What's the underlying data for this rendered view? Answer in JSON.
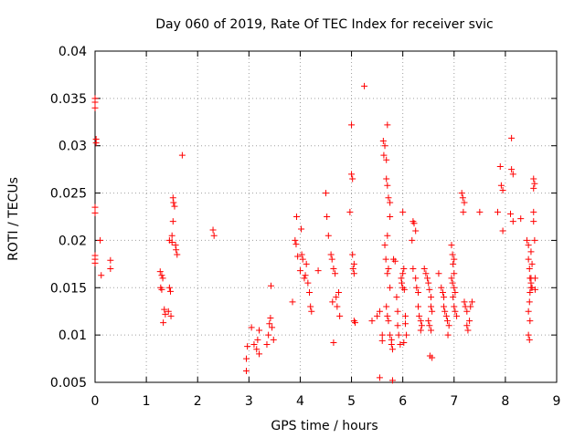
{
  "chart_data": {
    "type": "scatter",
    "title": "Day 060 of 2019, Rate Of TEC Index for receiver svic",
    "xlabel": "GPS time / hours",
    "ylabel": "ROTI / TECUs",
    "xlim": [
      0,
      9
    ],
    "ylim": [
      0.005,
      0.04
    ],
    "xticks": [
      "0",
      "1",
      "2",
      "3",
      "4",
      "5",
      "6",
      "7",
      "8",
      "9"
    ],
    "yticks": [
      "0.005",
      "0.01",
      "0.015",
      "0.02",
      "0.025",
      "0.03",
      "0.035",
      "0.04"
    ],
    "grid": true,
    "legend": "none",
    "marker": "plus",
    "color": "#ff0000",
    "series": [
      {
        "name": "ROTI",
        "points": [
          [
            0.0,
            0.035
          ],
          [
            0.0,
            0.0346
          ],
          [
            0.0,
            0.034
          ],
          [
            0.02,
            0.0307
          ],
          [
            0.02,
            0.0303
          ],
          [
            0.0,
            0.0235
          ],
          [
            0.0,
            0.0229
          ],
          [
            0.0,
            0.0184
          ],
          [
            0.0,
            0.018
          ],
          [
            0.0,
            0.0176
          ],
          [
            0.1,
            0.02
          ],
          [
            0.12,
            0.0163
          ],
          [
            0.3,
            0.0179
          ],
          [
            0.3,
            0.017
          ],
          [
            1.27,
            0.0167
          ],
          [
            1.3,
            0.0163
          ],
          [
            1.32,
            0.016
          ],
          [
            1.28,
            0.015
          ],
          [
            1.3,
            0.0148
          ],
          [
            1.35,
            0.0127
          ],
          [
            1.37,
            0.0122
          ],
          [
            1.33,
            0.0113
          ],
          [
            1.45,
            0.015
          ],
          [
            1.47,
            0.0146
          ],
          [
            1.43,
            0.0125
          ],
          [
            1.48,
            0.012
          ],
          [
            1.45,
            0.02
          ],
          [
            1.5,
            0.0198
          ],
          [
            1.52,
            0.0245
          ],
          [
            1.53,
            0.024
          ],
          [
            1.55,
            0.0236
          ],
          [
            1.52,
            0.022
          ],
          [
            1.5,
            0.0205
          ],
          [
            1.57,
            0.0195
          ],
          [
            1.58,
            0.019
          ],
          [
            1.6,
            0.0185
          ],
          [
            1.7,
            0.029
          ],
          [
            2.3,
            0.0211
          ],
          [
            2.32,
            0.0205
          ],
          [
            2.95,
            0.0062
          ],
          [
            2.95,
            0.0075
          ],
          [
            2.97,
            0.0088
          ],
          [
            3.05,
            0.0108
          ],
          [
            3.1,
            0.009
          ],
          [
            3.17,
            0.0095
          ],
          [
            3.2,
            0.0105
          ],
          [
            3.15,
            0.0085
          ],
          [
            3.2,
            0.008
          ],
          [
            3.35,
            0.009
          ],
          [
            3.38,
            0.01
          ],
          [
            3.4,
            0.0112
          ],
          [
            3.42,
            0.0118
          ],
          [
            3.45,
            0.0108
          ],
          [
            3.48,
            0.0095
          ],
          [
            3.43,
            0.0152
          ],
          [
            3.85,
            0.0135
          ],
          [
            3.9,
            0.02
          ],
          [
            3.92,
            0.0196
          ],
          [
            3.95,
            0.0183
          ],
          [
            3.93,
            0.0225
          ],
          [
            4.0,
            0.0168
          ],
          [
            4.02,
            0.0212
          ],
          [
            4.03,
            0.0185
          ],
          [
            4.05,
            0.018
          ],
          [
            4.08,
            0.016
          ],
          [
            4.1,
            0.0163
          ],
          [
            4.12,
            0.0175
          ],
          [
            4.15,
            0.0155
          ],
          [
            4.18,
            0.0145
          ],
          [
            4.2,
            0.013
          ],
          [
            4.22,
            0.0125
          ],
          [
            4.35,
            0.0168
          ],
          [
            4.5,
            0.025
          ],
          [
            4.52,
            0.0225
          ],
          [
            4.55,
            0.0205
          ],
          [
            4.6,
            0.0185
          ],
          [
            4.62,
            0.018
          ],
          [
            4.65,
            0.017
          ],
          [
            4.68,
            0.0165
          ],
          [
            4.63,
            0.0135
          ],
          [
            4.7,
            0.014
          ],
          [
            4.72,
            0.013
          ],
          [
            4.75,
            0.0145
          ],
          [
            4.77,
            0.012
          ],
          [
            4.65,
            0.0092
          ],
          [
            4.97,
            0.023
          ],
          [
            5.0,
            0.0322
          ],
          [
            5.0,
            0.027
          ],
          [
            5.02,
            0.0265
          ],
          [
            5.02,
            0.0185
          ],
          [
            5.05,
            0.0175
          ],
          [
            5.03,
            0.017
          ],
          [
            5.05,
            0.0165
          ],
          [
            5.05,
            0.0115
          ],
          [
            5.07,
            0.0113
          ],
          [
            5.25,
            0.0363
          ],
          [
            5.4,
            0.0115
          ],
          [
            5.5,
            0.012
          ],
          [
            5.55,
            0.0125
          ],
          [
            5.55,
            0.0055
          ],
          [
            5.6,
            0.01
          ],
          [
            5.6,
            0.0094
          ],
          [
            5.62,
            0.0305
          ],
          [
            5.65,
            0.03
          ],
          [
            5.63,
            0.029
          ],
          [
            5.68,
            0.0285
          ],
          [
            5.7,
            0.0322
          ],
          [
            5.68,
            0.0265
          ],
          [
            5.7,
            0.0258
          ],
          [
            5.72,
            0.0245
          ],
          [
            5.75,
            0.024
          ],
          [
            5.75,
            0.0225
          ],
          [
            5.7,
            0.0205
          ],
          [
            5.65,
            0.0195
          ],
          [
            5.67,
            0.018
          ],
          [
            5.72,
            0.017
          ],
          [
            5.7,
            0.0165
          ],
          [
            5.75,
            0.015
          ],
          [
            5.68,
            0.013
          ],
          [
            5.7,
            0.012
          ],
          [
            5.72,
            0.0115
          ],
          [
            5.75,
            0.01
          ],
          [
            5.78,
            0.0095
          ],
          [
            5.78,
            0.009
          ],
          [
            5.8,
            0.0085
          ],
          [
            5.8,
            0.0052
          ],
          [
            5.82,
            0.018
          ],
          [
            5.85,
            0.0178
          ],
          [
            5.88,
            0.014
          ],
          [
            5.9,
            0.0125
          ],
          [
            5.9,
            0.011
          ],
          [
            5.92,
            0.01
          ],
          [
            5.95,
            0.009
          ],
          [
            5.97,
            0.016
          ],
          [
            5.98,
            0.0155
          ],
          [
            6.0,
            0.0165
          ],
          [
            6.0,
            0.015
          ],
          [
            6.02,
            0.017
          ],
          [
            6.03,
            0.0148
          ],
          [
            6.05,
            0.012
          ],
          [
            6.05,
            0.0112
          ],
          [
            6.02,
            0.0092
          ],
          [
            6.07,
            0.01
          ],
          [
            6.0,
            0.023
          ],
          [
            6.2,
            0.022
          ],
          [
            6.22,
            0.0218
          ],
          [
            6.25,
            0.021
          ],
          [
            6.18,
            0.02
          ],
          [
            6.2,
            0.017
          ],
          [
            6.25,
            0.016
          ],
          [
            6.27,
            0.015
          ],
          [
            6.3,
            0.0145
          ],
          [
            6.3,
            0.013
          ],
          [
            6.32,
            0.012
          ],
          [
            6.35,
            0.0115
          ],
          [
            6.37,
            0.011
          ],
          [
            6.35,
            0.0105
          ],
          [
            6.42,
            0.017
          ],
          [
            6.45,
            0.0165
          ],
          [
            6.48,
            0.016
          ],
          [
            6.5,
            0.0155
          ],
          [
            6.52,
            0.0148
          ],
          [
            6.55,
            0.014
          ],
          [
            6.55,
            0.013
          ],
          [
            6.57,
            0.0125
          ],
          [
            6.5,
            0.0115
          ],
          [
            6.52,
            0.011
          ],
          [
            6.55,
            0.0105
          ],
          [
            6.53,
            0.0078
          ],
          [
            6.57,
            0.0076
          ],
          [
            6.7,
            0.0165
          ],
          [
            6.75,
            0.015
          ],
          [
            6.78,
            0.0145
          ],
          [
            6.8,
            0.014
          ],
          [
            6.8,
            0.013
          ],
          [
            6.82,
            0.0125
          ],
          [
            6.85,
            0.012
          ],
          [
            6.87,
            0.0115
          ],
          [
            6.9,
            0.011
          ],
          [
            6.88,
            0.01
          ],
          [
            6.95,
            0.0195
          ],
          [
            6.97,
            0.0185
          ],
          [
            7.0,
            0.018
          ],
          [
            6.98,
            0.0175
          ],
          [
            7.0,
            0.0165
          ],
          [
            6.95,
            0.016
          ],
          [
            6.97,
            0.0155
          ],
          [
            7.0,
            0.015
          ],
          [
            7.02,
            0.0145
          ],
          [
            6.98,
            0.014
          ],
          [
            7.0,
            0.013
          ],
          [
            7.02,
            0.0125
          ],
          [
            7.05,
            0.012
          ],
          [
            7.15,
            0.025
          ],
          [
            7.17,
            0.0245
          ],
          [
            7.2,
            0.024
          ],
          [
            7.18,
            0.023
          ],
          [
            7.2,
            0.0135
          ],
          [
            7.22,
            0.013
          ],
          [
            7.25,
            0.0125
          ],
          [
            7.25,
            0.011
          ],
          [
            7.27,
            0.0105
          ],
          [
            7.3,
            0.0115
          ],
          [
            7.32,
            0.013
          ],
          [
            7.35,
            0.0135
          ],
          [
            7.5,
            0.023
          ],
          [
            7.85,
            0.023
          ],
          [
            7.9,
            0.0278
          ],
          [
            7.92,
            0.0258
          ],
          [
            7.95,
            0.0253
          ],
          [
            7.95,
            0.021
          ],
          [
            8.12,
            0.0308
          ],
          [
            8.12,
            0.0275
          ],
          [
            8.15,
            0.027
          ],
          [
            8.1,
            0.0228
          ],
          [
            8.15,
            0.022
          ],
          [
            8.3,
            0.0223
          ],
          [
            8.42,
            0.02
          ],
          [
            8.45,
            0.0195
          ],
          [
            8.45,
            0.018
          ],
          [
            8.47,
            0.017
          ],
          [
            8.48,
            0.016
          ],
          [
            8.5,
            0.0155
          ],
          [
            8.5,
            0.015
          ],
          [
            8.48,
            0.0145
          ],
          [
            8.47,
            0.0135
          ],
          [
            8.45,
            0.0125
          ],
          [
            8.48,
            0.0115
          ],
          [
            8.45,
            0.01
          ],
          [
            8.47,
            0.0095
          ],
          [
            8.5,
            0.016
          ],
          [
            8.5,
            0.0188
          ],
          [
            8.52,
            0.0175
          ],
          [
            8.52,
            0.015
          ],
          [
            8.55,
            0.0265
          ],
          [
            8.57,
            0.026
          ],
          [
            8.55,
            0.0255
          ],
          [
            8.55,
            0.023
          ],
          [
            8.55,
            0.022
          ],
          [
            8.57,
            0.02
          ],
          [
            8.58,
            0.016
          ],
          [
            8.58,
            0.0148
          ]
        ]
      }
    ]
  }
}
